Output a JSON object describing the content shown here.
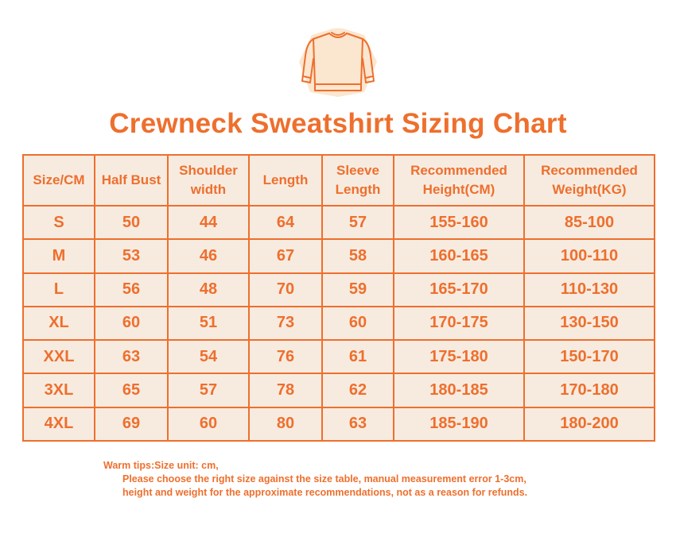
{
  "title": "Crewneck Sweatshirt Sizing Chart",
  "icon": "sweatshirt-icon",
  "colors": {
    "accent": "#ee6f2d",
    "cell_bg": "#f7ebe0",
    "icon_bg": "#fbe6cf"
  },
  "table": {
    "headers": [
      [
        "Size/CM"
      ],
      [
        "Half Bust"
      ],
      [
        "Shoulder",
        "width"
      ],
      [
        "Length"
      ],
      [
        "Sleeve",
        "Length"
      ],
      [
        "Recommended",
        "Height(CM)"
      ],
      [
        "Recommended",
        "Weight(KG)"
      ]
    ],
    "rows": [
      [
        "S",
        "50",
        "44",
        "64",
        "57",
        "155-160",
        "85-100"
      ],
      [
        "M",
        "53",
        "46",
        "67",
        "58",
        "160-165",
        "100-110"
      ],
      [
        "L",
        "56",
        "48",
        "70",
        "59",
        "165-170",
        "110-130"
      ],
      [
        "XL",
        "60",
        "51",
        "73",
        "60",
        "170-175",
        "130-150"
      ],
      [
        "XXL",
        "63",
        "54",
        "76",
        "61",
        "175-180",
        "150-170"
      ],
      [
        "3XL",
        "65",
        "57",
        "78",
        "62",
        "180-185",
        "170-180"
      ],
      [
        "4XL",
        "69",
        "60",
        "80",
        "63",
        "185-190",
        "180-200"
      ]
    ]
  },
  "tips": {
    "line1": "Warm tips:Size unit: cm,",
    "line2": "Please choose the right size against the size table, manual measurement error 1-3cm,",
    "line3": "height and weight for the approximate recommendations, not as a reason for refunds."
  }
}
